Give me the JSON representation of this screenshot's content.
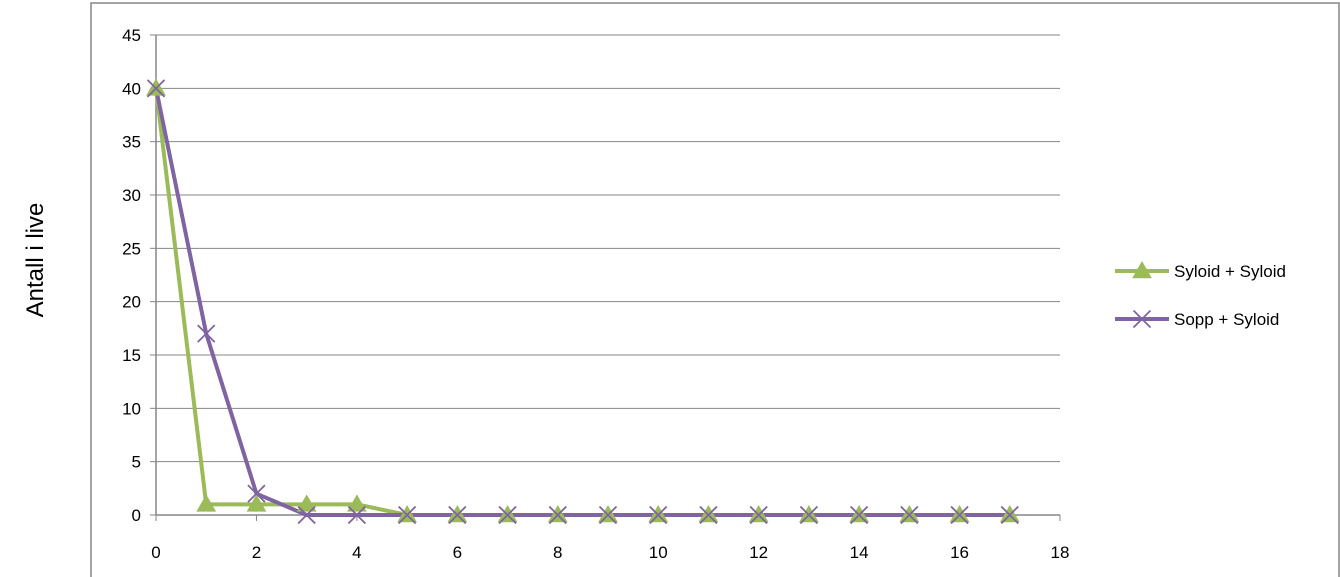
{
  "chart_data": {
    "type": "line",
    "title": "",
    "xlabel": "",
    "ylabel": "Antall i live",
    "xlim": [
      0,
      18
    ],
    "ylim": [
      0,
      45
    ],
    "xticks": [
      0,
      2,
      4,
      6,
      8,
      10,
      12,
      14,
      16,
      18
    ],
    "yticks": [
      0,
      5,
      10,
      15,
      20,
      25,
      30,
      35,
      40,
      45
    ],
    "grid": "horizontal",
    "legend_position": "right",
    "x": [
      0,
      1,
      2,
      3,
      4,
      5,
      6,
      7,
      8,
      9,
      10,
      11,
      12,
      13,
      14,
      15,
      16,
      17
    ],
    "series": [
      {
        "name": "Syloid + Syloid",
        "color": "#9BBB59",
        "marker": "triangle",
        "values": [
          40,
          1,
          1,
          1,
          1,
          0,
          0,
          0,
          0,
          0,
          0,
          0,
          0,
          0,
          0,
          0,
          0,
          0
        ]
      },
      {
        "name": "Sopp + Syloid",
        "color": "#8064A2",
        "marker": "x",
        "values": [
          40,
          17,
          2,
          0,
          0,
          0,
          0,
          0,
          0,
          0,
          0,
          0,
          0,
          0,
          0,
          0,
          0,
          0
        ]
      }
    ]
  }
}
